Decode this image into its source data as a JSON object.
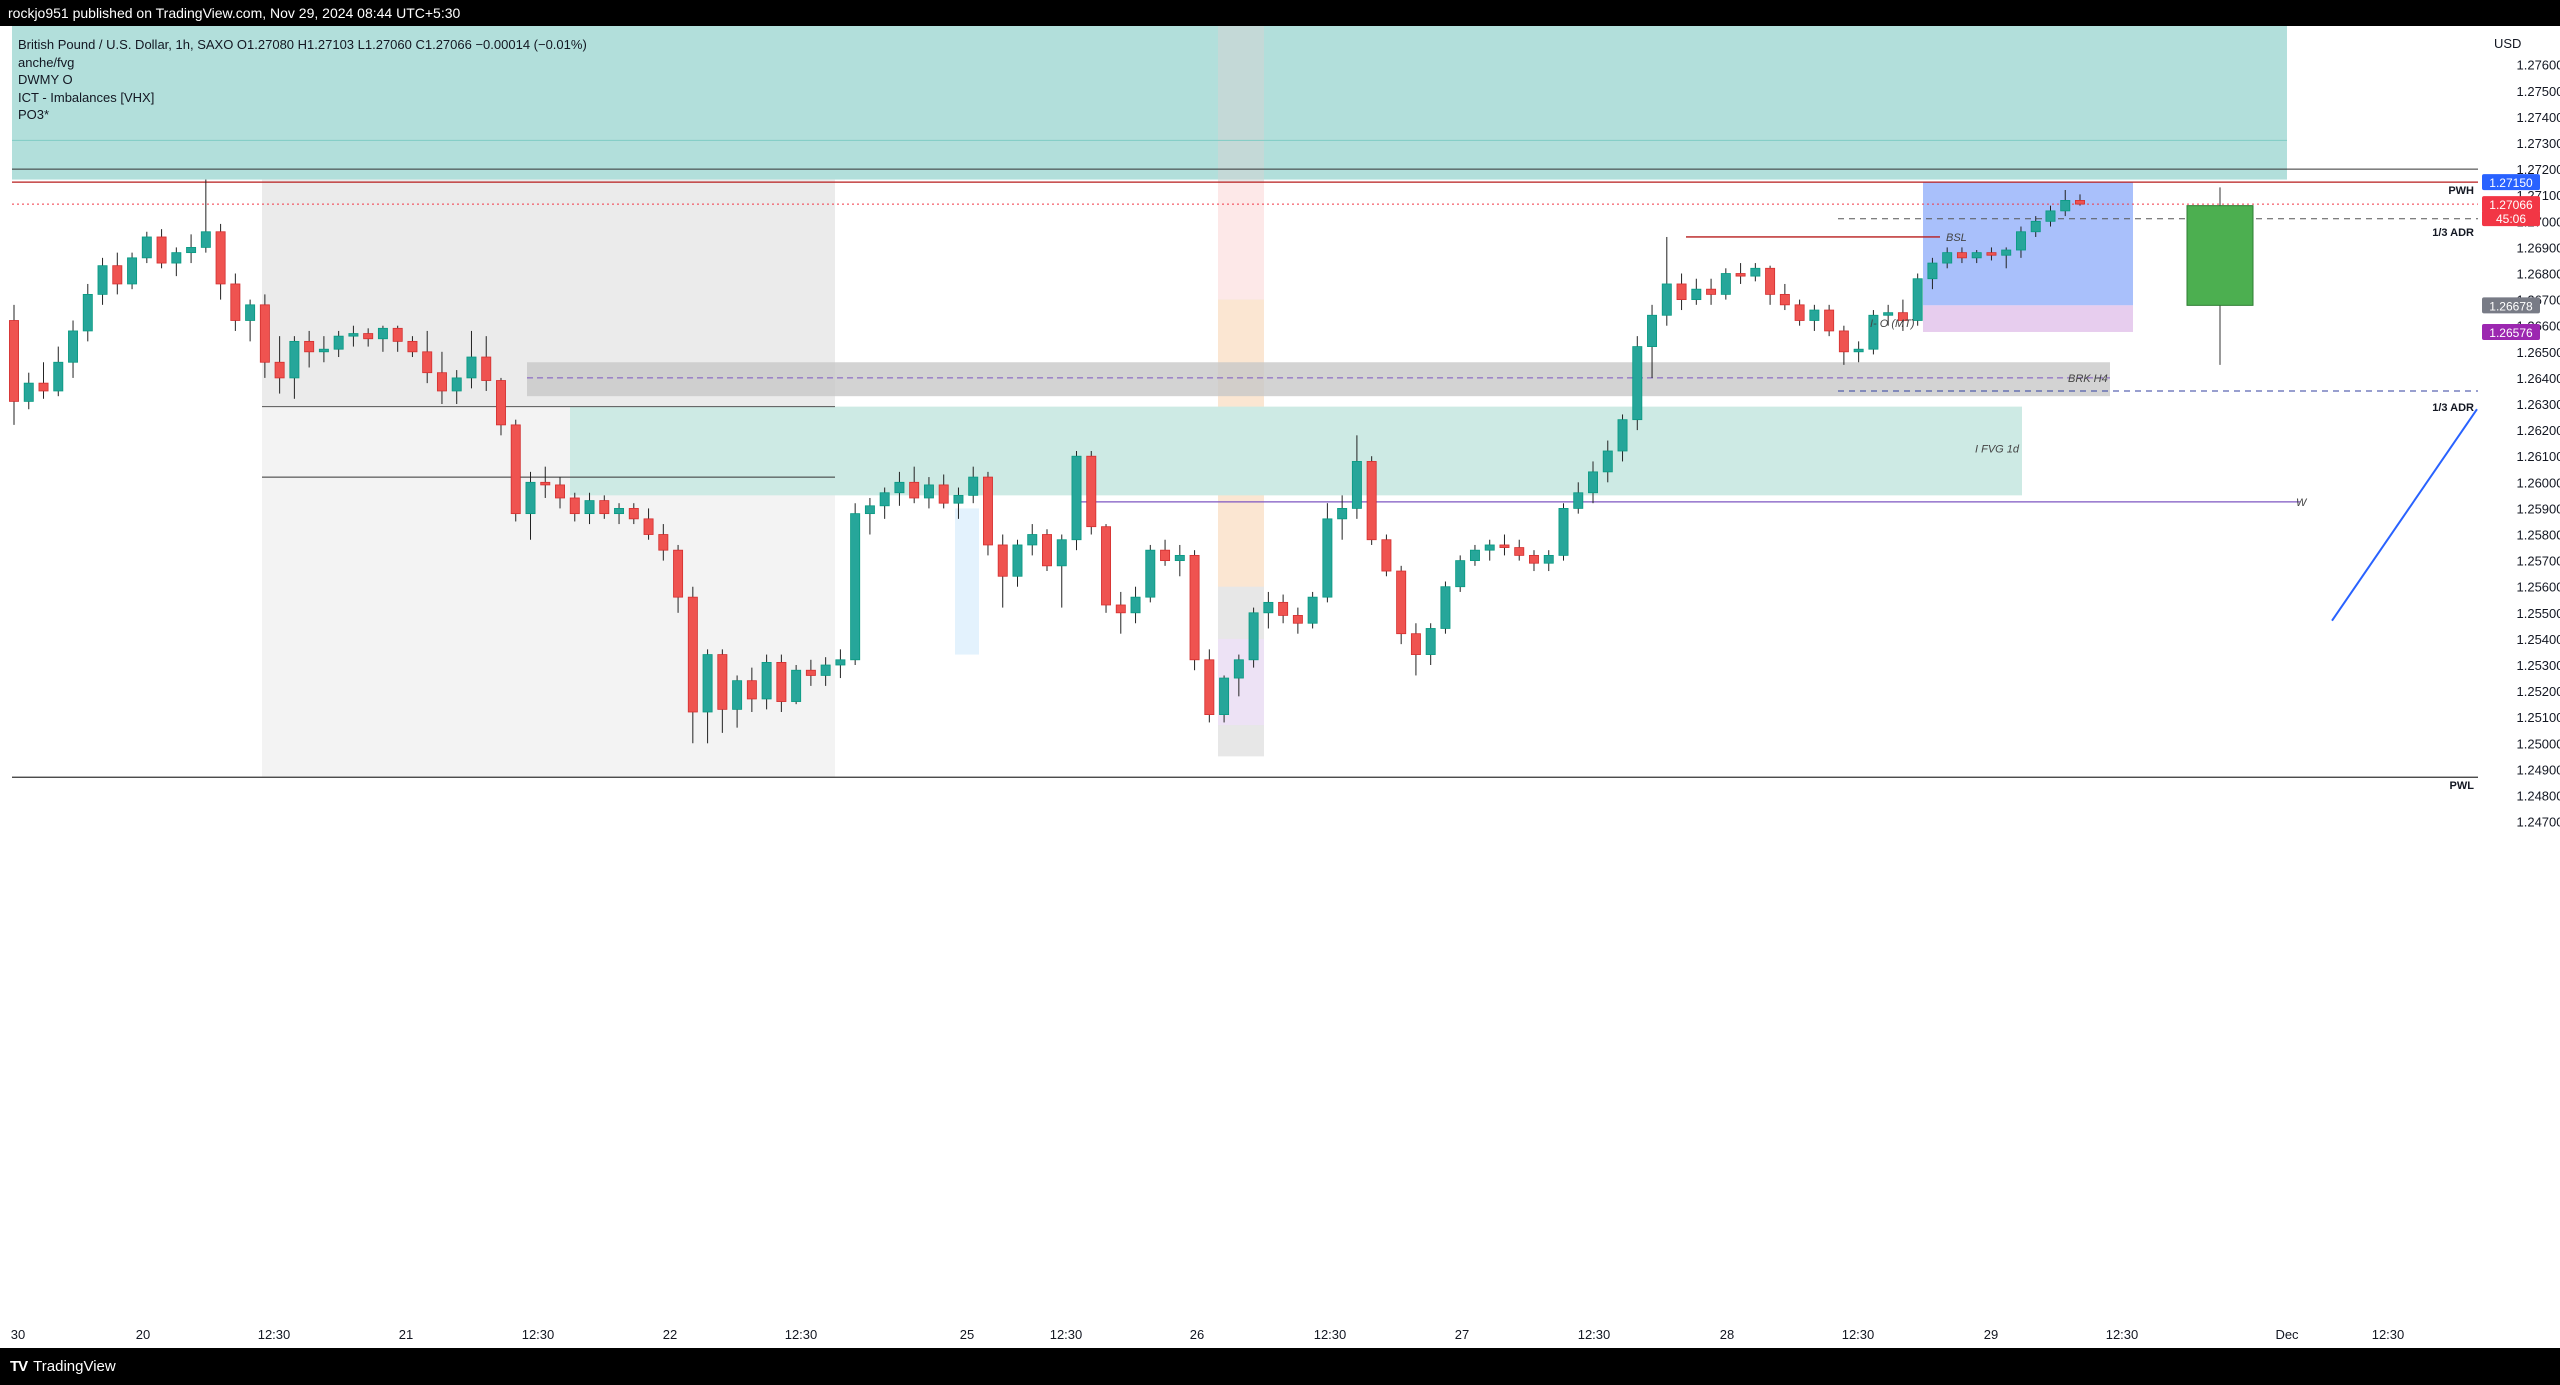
{
  "header": {
    "published_line": "rockjo951 published on TradingView.com, Nov 29, 2024 08:44 UTC+5:30"
  },
  "legend": {
    "symbol_line": "British Pound / U.S. Dollar, 1h, SAXO  O1.27080  H1.27103  L1.27060  C1.27066  −0.00014 (−0.01%)",
    "indicators": [
      "anche/fvg",
      "DWMY O",
      "ICT - Imbalances [VHX]",
      "PO3*"
    ]
  },
  "footer": {
    "brand": "TradingView"
  },
  "chart_data": {
    "type": "candlestick",
    "symbol": "British Pound / U.S. Dollar",
    "interval": "1h",
    "currency_label": "USD",
    "ylim": [
      1.2465,
      1.277
    ],
    "price_ticks": [
      "1.27600",
      "1.27500",
      "1.27400",
      "1.27300",
      "1.27200",
      "1.27100",
      "1.27000",
      "1.26900",
      "1.26800",
      "1.26700",
      "1.26600",
      "1.26500",
      "1.26400",
      "1.26300",
      "1.26200",
      "1.26100",
      "1.26000",
      "1.25900",
      "1.25800",
      "1.25700",
      "1.25600",
      "1.25500",
      "1.25400",
      "1.25300",
      "1.25200",
      "1.25100",
      "1.25000",
      "1.24900",
      "1.24800",
      "1.24700"
    ],
    "time_ticks": [
      "30",
      "20",
      "12:30",
      "21",
      "12:30",
      "22",
      "12:30",
      "25",
      "12:30",
      "26",
      "12:30",
      "27",
      "12:30",
      "28",
      "12:30",
      "29",
      "12:30",
      "Dec",
      "12:30"
    ],
    "price_badges": [
      {
        "text": "1.27150",
        "price": 1.2715,
        "color": "#2962ff"
      },
      {
        "text": "1.27066",
        "price": 1.27066,
        "color": "#f23645"
      },
      {
        "text": "45:06",
        "price": 1.27066,
        "color": "#f23645"
      },
      {
        "text": "1.26678",
        "price": 1.26678,
        "color": "#787b86"
      },
      {
        "text": "1.26576",
        "price": 1.26576,
        "color": "#9c27b0"
      }
    ],
    "level_labels": [
      {
        "text": "PWH",
        "price": 1.2715
      },
      {
        "text": "1/3 ADR",
        "price": 1.2699
      },
      {
        "text": "1/3 ADR",
        "price": 1.2632
      },
      {
        "text": "PWL",
        "price": 1.2487
      }
    ],
    "annotations": [
      {
        "text": "BSL",
        "price": 1.2694
      },
      {
        "text": "BRK  H4",
        "price": 1.264
      },
      {
        "text": "I FVG  1d",
        "price": 1.2613
      },
      {
        "text": "W",
        "price": 1.25925
      },
      {
        "text": "I- O  (MT)",
        "price": 1.2661
      }
    ],
    "candles": [
      {
        "o": 1.2662,
        "h": 1.2668,
        "l": 1.2622,
        "c": 1.2631
      },
      {
        "o": 1.2631,
        "h": 1.2642,
        "l": 1.2628,
        "c": 1.2638
      },
      {
        "o": 1.2638,
        "h": 1.2646,
        "l": 1.2632,
        "c": 1.2635
      },
      {
        "o": 1.2635,
        "h": 1.2652,
        "l": 1.2633,
        "c": 1.2646
      },
      {
        "o": 1.2646,
        "h": 1.2662,
        "l": 1.264,
        "c": 1.2658
      },
      {
        "o": 1.2658,
        "h": 1.2676,
        "l": 1.2654,
        "c": 1.2672
      },
      {
        "o": 1.2672,
        "h": 1.2686,
        "l": 1.2668,
        "c": 1.2683
      },
      {
        "o": 1.2683,
        "h": 1.2688,
        "l": 1.2672,
        "c": 1.2676
      },
      {
        "o": 1.2676,
        "h": 1.2688,
        "l": 1.2674,
        "c": 1.2686
      },
      {
        "o": 1.2686,
        "h": 1.2696,
        "l": 1.2684,
        "c": 1.2694
      },
      {
        "o": 1.2694,
        "h": 1.2697,
        "l": 1.2682,
        "c": 1.2684
      },
      {
        "o": 1.2684,
        "h": 1.269,
        "l": 1.2679,
        "c": 1.2688
      },
      {
        "o": 1.2688,
        "h": 1.2695,
        "l": 1.2684,
        "c": 1.269
      },
      {
        "o": 1.269,
        "h": 1.2716,
        "l": 1.2688,
        "c": 1.2696
      },
      {
        "o": 1.2696,
        "h": 1.2699,
        "l": 1.267,
        "c": 1.2676
      },
      {
        "o": 1.2676,
        "h": 1.268,
        "l": 1.2658,
        "c": 1.2662
      },
      {
        "o": 1.2662,
        "h": 1.267,
        "l": 1.2654,
        "c": 1.2668
      },
      {
        "o": 1.2668,
        "h": 1.2672,
        "l": 1.264,
        "c": 1.2646
      },
      {
        "o": 1.2646,
        "h": 1.2656,
        "l": 1.2634,
        "c": 1.264
      },
      {
        "o": 1.264,
        "h": 1.2656,
        "l": 1.2632,
        "c": 1.2654
      },
      {
        "o": 1.2654,
        "h": 1.2658,
        "l": 1.2644,
        "c": 1.265
      },
      {
        "o": 1.265,
        "h": 1.2656,
        "l": 1.2646,
        "c": 1.2651
      },
      {
        "o": 1.2651,
        "h": 1.2658,
        "l": 1.2648,
        "c": 1.2656
      },
      {
        "o": 1.2656,
        "h": 1.266,
        "l": 1.2652,
        "c": 1.2657
      },
      {
        "o": 1.2657,
        "h": 1.2659,
        "l": 1.2652,
        "c": 1.2655
      },
      {
        "o": 1.2655,
        "h": 1.266,
        "l": 1.265,
        "c": 1.2659
      },
      {
        "o": 1.2659,
        "h": 1.266,
        "l": 1.265,
        "c": 1.2654
      },
      {
        "o": 1.2654,
        "h": 1.2656,
        "l": 1.2648,
        "c": 1.265
      },
      {
        "o": 1.265,
        "h": 1.2658,
        "l": 1.2638,
        "c": 1.2642
      },
      {
        "o": 1.2642,
        "h": 1.265,
        "l": 1.263,
        "c": 1.2635
      },
      {
        "o": 1.2635,
        "h": 1.2643,
        "l": 1.263,
        "c": 1.264
      },
      {
        "o": 1.264,
        "h": 1.2658,
        "l": 1.2636,
        "c": 1.2648
      },
      {
        "o": 1.2648,
        "h": 1.2656,
        "l": 1.2635,
        "c": 1.2639
      },
      {
        "o": 1.2639,
        "h": 1.264,
        "l": 1.2618,
        "c": 1.2622
      },
      {
        "o": 1.2622,
        "h": 1.2624,
        "l": 1.2585,
        "c": 1.2588
      },
      {
        "o": 1.2588,
        "h": 1.2604,
        "l": 1.2578,
        "c": 1.26
      },
      {
        "o": 1.26,
        "h": 1.2606,
        "l": 1.2594,
        "c": 1.2599
      },
      {
        "o": 1.2599,
        "h": 1.2602,
        "l": 1.259,
        "c": 1.2594
      },
      {
        "o": 1.2594,
        "h": 1.2596,
        "l": 1.2585,
        "c": 1.2588
      },
      {
        "o": 1.2588,
        "h": 1.2596,
        "l": 1.2584,
        "c": 1.2593
      },
      {
        "o": 1.2593,
        "h": 1.2595,
        "l": 1.2586,
        "c": 1.2588
      },
      {
        "o": 1.2588,
        "h": 1.2592,
        "l": 1.2584,
        "c": 1.259
      },
      {
        "o": 1.259,
        "h": 1.2592,
        "l": 1.2584,
        "c": 1.2586
      },
      {
        "o": 1.2586,
        "h": 1.259,
        "l": 1.2578,
        "c": 1.258
      },
      {
        "o": 1.258,
        "h": 1.2584,
        "l": 1.257,
        "c": 1.2574
      },
      {
        "o": 1.2574,
        "h": 1.2576,
        "l": 1.255,
        "c": 1.2556
      },
      {
        "o": 1.2556,
        "h": 1.256,
        "l": 1.25,
        "c": 1.2512
      },
      {
        "o": 1.2512,
        "h": 1.2536,
        "l": 1.25,
        "c": 1.2534
      },
      {
        "o": 1.2534,
        "h": 1.2536,
        "l": 1.2504,
        "c": 1.2513
      },
      {
        "o": 1.2513,
        "h": 1.2526,
        "l": 1.2506,
        "c": 1.2524
      },
      {
        "o": 1.2524,
        "h": 1.2529,
        "l": 1.2512,
        "c": 1.2517
      },
      {
        "o": 1.2517,
        "h": 1.2534,
        "l": 1.2513,
        "c": 1.2531
      },
      {
        "o": 1.2531,
        "h": 1.2534,
        "l": 1.2512,
        "c": 1.2516
      },
      {
        "o": 1.2516,
        "h": 1.253,
        "l": 1.2515,
        "c": 1.2528
      },
      {
        "o": 1.2528,
        "h": 1.2532,
        "l": 1.2522,
        "c": 1.2526
      },
      {
        "o": 1.2526,
        "h": 1.2533,
        "l": 1.2522,
        "c": 1.253
      },
      {
        "o": 1.253,
        "h": 1.2536,
        "l": 1.2525,
        "c": 1.2532
      },
      {
        "o": 1.2532,
        "h": 1.2592,
        "l": 1.253,
        "c": 1.2588
      },
      {
        "o": 1.2588,
        "h": 1.2594,
        "l": 1.258,
        "c": 1.2591
      },
      {
        "o": 1.2591,
        "h": 1.2598,
        "l": 1.2586,
        "c": 1.2596
      },
      {
        "o": 1.2596,
        "h": 1.2604,
        "l": 1.2591,
        "c": 1.26
      },
      {
        "o": 1.26,
        "h": 1.2606,
        "l": 1.2592,
        "c": 1.2594
      },
      {
        "o": 1.2594,
        "h": 1.2602,
        "l": 1.259,
        "c": 1.2599
      },
      {
        "o": 1.2599,
        "h": 1.2603,
        "l": 1.259,
        "c": 1.2592
      },
      {
        "o": 1.2592,
        "h": 1.2598,
        "l": 1.2586,
        "c": 1.2595
      },
      {
        "o": 1.2595,
        "h": 1.2606,
        "l": 1.2592,
        "c": 1.2602
      },
      {
        "o": 1.2602,
        "h": 1.2604,
        "l": 1.2572,
        "c": 1.2576
      },
      {
        "o": 1.2576,
        "h": 1.258,
        "l": 1.2552,
        "c": 1.2564
      },
      {
        "o": 1.2564,
        "h": 1.2578,
        "l": 1.256,
        "c": 1.2576
      },
      {
        "o": 1.2576,
        "h": 1.2584,
        "l": 1.2572,
        "c": 1.258
      },
      {
        "o": 1.258,
        "h": 1.2582,
        "l": 1.2566,
        "c": 1.2568
      },
      {
        "o": 1.2568,
        "h": 1.258,
        "l": 1.2552,
        "c": 1.2578
      },
      {
        "o": 1.2578,
        "h": 1.2612,
        "l": 1.2574,
        "c": 1.261
      },
      {
        "o": 1.261,
        "h": 1.2612,
        "l": 1.258,
        "c": 1.2583
      },
      {
        "o": 1.2583,
        "h": 1.2584,
        "l": 1.255,
        "c": 1.2553
      },
      {
        "o": 1.2553,
        "h": 1.2558,
        "l": 1.2542,
        "c": 1.255
      },
      {
        "o": 1.255,
        "h": 1.256,
        "l": 1.2546,
        "c": 1.2556
      },
      {
        "o": 1.2556,
        "h": 1.2576,
        "l": 1.2554,
        "c": 1.2574
      },
      {
        "o": 1.2574,
        "h": 1.2578,
        "l": 1.2568,
        "c": 1.257
      },
      {
        "o": 1.257,
        "h": 1.2576,
        "l": 1.2564,
        "c": 1.2572
      },
      {
        "o": 1.2572,
        "h": 1.2574,
        "l": 1.2528,
        "c": 1.2532
      },
      {
        "o": 1.2532,
        "h": 1.2536,
        "l": 1.2508,
        "c": 1.2511
      },
      {
        "o": 1.2511,
        "h": 1.2526,
        "l": 1.2508,
        "c": 1.2525
      },
      {
        "o": 1.2525,
        "h": 1.2534,
        "l": 1.2518,
        "c": 1.2532
      },
      {
        "o": 1.2532,
        "h": 1.2552,
        "l": 1.2529,
        "c": 1.255
      },
      {
        "o": 1.255,
        "h": 1.2558,
        "l": 1.2544,
        "c": 1.2554
      },
      {
        "o": 1.2554,
        "h": 1.2557,
        "l": 1.2546,
        "c": 1.2549
      },
      {
        "o": 1.2549,
        "h": 1.2552,
        "l": 1.2542,
        "c": 1.2546
      },
      {
        "o": 1.2546,
        "h": 1.2558,
        "l": 1.2544,
        "c": 1.2556
      },
      {
        "o": 1.2556,
        "h": 1.2592,
        "l": 1.2554,
        "c": 1.2586
      },
      {
        "o": 1.2586,
        "h": 1.2595,
        "l": 1.2578,
        "c": 1.259
      },
      {
        "o": 1.259,
        "h": 1.2618,
        "l": 1.2586,
        "c": 1.2608
      },
      {
        "o": 1.2608,
        "h": 1.261,
        "l": 1.2576,
        "c": 1.2578
      },
      {
        "o": 1.2578,
        "h": 1.258,
        "l": 1.2564,
        "c": 1.2566
      },
      {
        "o": 1.2566,
        "h": 1.2568,
        "l": 1.2538,
        "c": 1.2542
      },
      {
        "o": 1.2542,
        "h": 1.2546,
        "l": 1.2526,
        "c": 1.2534
      },
      {
        "o": 1.2534,
        "h": 1.2546,
        "l": 1.253,
        "c": 1.2544
      },
      {
        "o": 1.2544,
        "h": 1.2562,
        "l": 1.2542,
        "c": 1.256
      },
      {
        "o": 1.256,
        "h": 1.2572,
        "l": 1.2558,
        "c": 1.257
      },
      {
        "o": 1.257,
        "h": 1.2576,
        "l": 1.2568,
        "c": 1.2574
      },
      {
        "o": 1.2574,
        "h": 1.2578,
        "l": 1.257,
        "c": 1.2576
      },
      {
        "o": 1.2576,
        "h": 1.258,
        "l": 1.2572,
        "c": 1.2575
      },
      {
        "o": 1.2575,
        "h": 1.2578,
        "l": 1.257,
        "c": 1.2572
      },
      {
        "o": 1.2572,
        "h": 1.2574,
        "l": 1.2566,
        "c": 1.2569
      },
      {
        "o": 1.2569,
        "h": 1.2574,
        "l": 1.2566,
        "c": 1.2572
      },
      {
        "o": 1.2572,
        "h": 1.2592,
        "l": 1.257,
        "c": 1.259
      },
      {
        "o": 1.259,
        "h": 1.26,
        "l": 1.2588,
        "c": 1.2596
      },
      {
        "o": 1.2596,
        "h": 1.2608,
        "l": 1.2592,
        "c": 1.2604
      },
      {
        "o": 1.2604,
        "h": 1.2616,
        "l": 1.26,
        "c": 1.2612
      },
      {
        "o": 1.2612,
        "h": 1.2626,
        "l": 1.2608,
        "c": 1.2624
      },
      {
        "o": 1.2624,
        "h": 1.2656,
        "l": 1.262,
        "c": 1.2652
      },
      {
        "o": 1.2652,
        "h": 1.2668,
        "l": 1.264,
        "c": 1.2664
      },
      {
        "o": 1.2664,
        "h": 1.2694,
        "l": 1.266,
        "c": 1.2676
      },
      {
        "o": 1.2676,
        "h": 1.268,
        "l": 1.2666,
        "c": 1.267
      },
      {
        "o": 1.267,
        "h": 1.2678,
        "l": 1.2668,
        "c": 1.2674
      },
      {
        "o": 1.2674,
        "h": 1.2678,
        "l": 1.2668,
        "c": 1.2672
      },
      {
        "o": 1.2672,
        "h": 1.2682,
        "l": 1.267,
        "c": 1.268
      },
      {
        "o": 1.268,
        "h": 1.2684,
        "l": 1.2676,
        "c": 1.2679
      },
      {
        "o": 1.2679,
        "h": 1.2684,
        "l": 1.2677,
        "c": 1.2682
      },
      {
        "o": 1.2682,
        "h": 1.2683,
        "l": 1.2668,
        "c": 1.2672
      },
      {
        "o": 1.2672,
        "h": 1.2676,
        "l": 1.2666,
        "c": 1.2668
      },
      {
        "o": 1.2668,
        "h": 1.267,
        "l": 1.266,
        "c": 1.2662
      },
      {
        "o": 1.2662,
        "h": 1.2668,
        "l": 1.2658,
        "c": 1.2666
      },
      {
        "o": 1.2666,
        "h": 1.2668,
        "l": 1.2656,
        "c": 1.2658
      },
      {
        "o": 1.2658,
        "h": 1.266,
        "l": 1.2645,
        "c": 1.265
      },
      {
        "o": 1.265,
        "h": 1.2654,
        "l": 1.2646,
        "c": 1.2651
      },
      {
        "o": 1.2651,
        "h": 1.2666,
        "l": 1.2649,
        "c": 1.2664
      },
      {
        "o": 1.2664,
        "h": 1.2668,
        "l": 1.266,
        "c": 1.2665
      },
      {
        "o": 1.2665,
        "h": 1.267,
        "l": 1.2658,
        "c": 1.2662
      },
      {
        "o": 1.2662,
        "h": 1.268,
        "l": 1.266,
        "c": 1.2678
      },
      {
        "o": 1.2678,
        "h": 1.2686,
        "l": 1.2674,
        "c": 1.2684
      },
      {
        "o": 1.2684,
        "h": 1.269,
        "l": 1.2682,
        "c": 1.2688
      },
      {
        "o": 1.2688,
        "h": 1.269,
        "l": 1.2684,
        "c": 1.2686
      },
      {
        "o": 1.2686,
        "h": 1.2689,
        "l": 1.2684,
        "c": 1.2688
      },
      {
        "o": 1.2688,
        "h": 1.269,
        "l": 1.2685,
        "c": 1.2687
      },
      {
        "o": 1.2687,
        "h": 1.269,
        "l": 1.2682,
        "c": 1.2689
      },
      {
        "o": 1.2689,
        "h": 1.2698,
        "l": 1.2686,
        "c": 1.2696
      },
      {
        "o": 1.2696,
        "h": 1.2702,
        "l": 1.2694,
        "c": 1.27
      },
      {
        "o": 1.27,
        "h": 1.2706,
        "l": 1.2698,
        "c": 1.2704
      },
      {
        "o": 1.2704,
        "h": 1.2712,
        "l": 1.2702,
        "c": 1.2708
      },
      {
        "o": 1.2708,
        "h": 1.27103,
        "l": 1.2706,
        "c": 1.27066
      }
    ],
    "po3_candle": {
      "o": 1.26678,
      "h": 1.2713,
      "l": 1.2645,
      "c": 1.2706
    }
  }
}
